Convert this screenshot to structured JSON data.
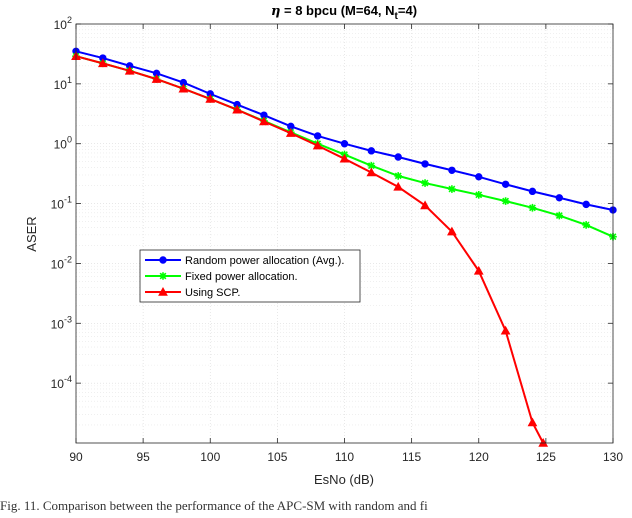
{
  "chart_data": {
    "type": "line",
    "title": "η = 8 bpcu (M=64, N t=4)",
    "title_parts": {
      "eta": "η",
      "rest": " = 8 bpcu (M=64, N",
      "sub": "t",
      "end": "=4)"
    },
    "xlabel": "EsNo (dB)",
    "ylabel": "ASER",
    "xlim": [
      90,
      130
    ],
    "ylim_log10": [
      -5,
      2
    ],
    "yscale": "log",
    "grid": true,
    "legend_position": "center-left",
    "x_ticks": [
      "90",
      "95",
      "100",
      "105",
      "110",
      "115",
      "120",
      "125",
      "130"
    ],
    "y_ticks": [
      {
        "base": "10",
        "exp": "2"
      },
      {
        "base": "10",
        "exp": "1"
      },
      {
        "base": "10",
        "exp": "0"
      },
      {
        "base": "10",
        "exp": "-1"
      },
      {
        "base": "10",
        "exp": "-2"
      },
      {
        "base": "10",
        "exp": "-3"
      },
      {
        "base": "10",
        "exp": "-4"
      }
    ],
    "series": [
      {
        "name": "Random power allocation (Avg.).",
        "color": "#0000ff",
        "marker": "circle",
        "x": [
          90,
          92,
          94,
          96,
          98,
          100,
          102,
          104,
          106,
          108,
          110,
          112,
          114,
          116,
          118,
          120,
          122,
          124,
          126,
          128,
          130
        ],
        "y": [
          35,
          27,
          20,
          15,
          10.5,
          6.8,
          4.5,
          3.0,
          1.95,
          1.35,
          1.0,
          0.76,
          0.6,
          0.46,
          0.36,
          0.28,
          0.21,
          0.16,
          0.125,
          0.097,
          0.078
        ]
      },
      {
        "name": "Fixed power allocation.",
        "color": "#00ff00",
        "marker": "star",
        "x": [
          90,
          92,
          94,
          96,
          98,
          100,
          102,
          104,
          106,
          108,
          110,
          112,
          114,
          116,
          118,
          120,
          122,
          124,
          126,
          128,
          130
        ],
        "y": [
          29,
          22,
          16.5,
          12,
          8.3,
          5.6,
          3.7,
          2.4,
          1.55,
          1.0,
          0.66,
          0.43,
          0.29,
          0.22,
          0.175,
          0.14,
          0.11,
          0.085,
          0.063,
          0.044,
          0.028
        ]
      },
      {
        "name": "Using SCP.",
        "color": "#ff0000",
        "marker": "triangle",
        "x": [
          90,
          92,
          94,
          96,
          98,
          100,
          102,
          104,
          106,
          108,
          110,
          112,
          114,
          116,
          118,
          120,
          122,
          124,
          124.8
        ],
        "y": [
          29,
          22,
          16.5,
          12,
          8.3,
          5.6,
          3.7,
          2.35,
          1.5,
          0.93,
          0.56,
          0.33,
          0.19,
          0.093,
          0.034,
          0.0075,
          0.00075,
          2.2e-05,
          1e-05
        ]
      }
    ]
  },
  "caption": "Fig. 11.  Comparison between the performance of the APC-SM with random and fi"
}
